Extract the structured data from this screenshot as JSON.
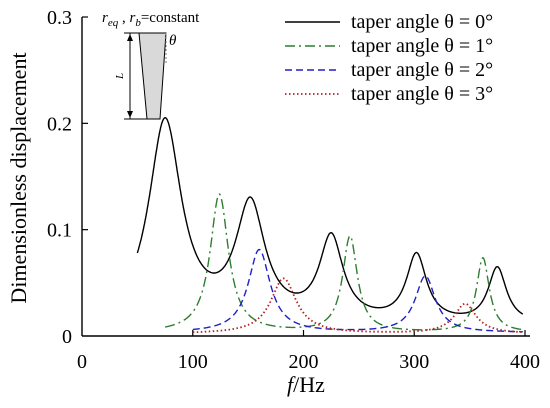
{
  "chart_data": {
    "type": "line",
    "xlabel_italic": "f",
    "xlabel_rest": "/Hz",
    "ylabel": "Dimensionless displacement",
    "xlim": [
      0,
      400
    ],
    "ylim": [
      0,
      0.3
    ],
    "x_ticks": [
      "0",
      "100",
      "200",
      "300",
      "400"
    ],
    "y_ticks": [
      "0",
      "0.1",
      "0.2",
      "0.3"
    ],
    "legend_position": "top-right",
    "grid": false,
    "series": [
      {
        "name": "taper angle  θ = 0°",
        "color": "#000000",
        "style": "solid",
        "x_range": [
          50,
          398
        ],
        "peaks": [
          {
            "f": 75,
            "a": 0.19,
            "w": 18
          },
          {
            "f": 152,
            "a": 0.108,
            "w": 16
          },
          {
            "f": 225,
            "a": 0.078,
            "w": 13
          },
          {
            "f": 302,
            "a": 0.063,
            "w": 11
          },
          {
            "f": 375,
            "a": 0.052,
            "w": 10
          }
        ],
        "baseline": 0.01
      },
      {
        "name": "taper angle  θ = 1°",
        "color": "#2e7d32",
        "style": "dashdot",
        "x_range": [
          75,
          398
        ],
        "peaks": [
          {
            "f": 124,
            "a": 0.13,
            "w": 10
          },
          {
            "f": 242,
            "a": 0.09,
            "w": 8
          },
          {
            "f": 362,
            "a": 0.07,
            "w": 7
          }
        ],
        "baseline": 0.003
      },
      {
        "name": "taper angle  θ = 2°",
        "color": "#1f1fc8",
        "style": "dashed",
        "x_range": [
          100,
          398
        ],
        "peaks": [
          {
            "f": 160,
            "a": 0.078,
            "w": 12
          },
          {
            "f": 310,
            "a": 0.053,
            "w": 11
          }
        ],
        "baseline": 0.003
      },
      {
        "name": "taper angle  θ = 3°",
        "color": "#b22222",
        "style": "dotted",
        "x_range": [
          100,
          398
        ],
        "peaks": [
          {
            "f": 182,
            "a": 0.052,
            "w": 14
          },
          {
            "f": 346,
            "a": 0.028,
            "w": 12
          }
        ],
        "baseline": 0.002
      }
    ],
    "inset": {
      "label_parts": [
        "r",
        "eq",
        " , ",
        "r",
        "b",
        "=constant"
      ],
      "theta_label": "θ",
      "length_label": "L"
    }
  }
}
